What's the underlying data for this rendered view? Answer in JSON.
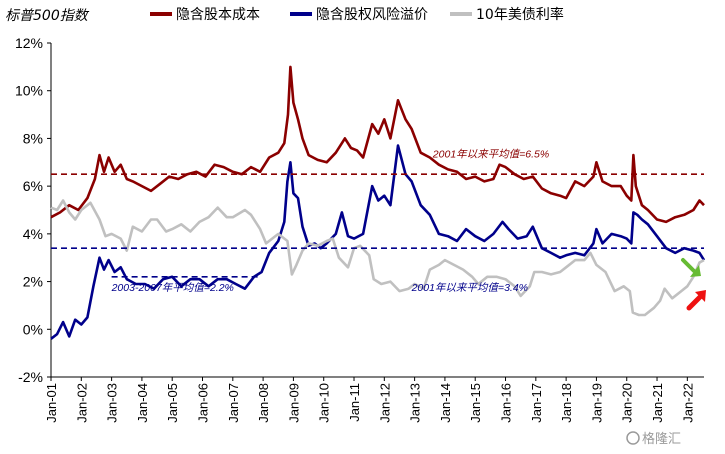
{
  "chart_data": {
    "type": "line",
    "title": "标普500指数",
    "yticks": [
      "-2%",
      "0%",
      "2%",
      "4%",
      "6%",
      "8%",
      "10%",
      "12%"
    ],
    "ylim": [
      -2,
      12
    ],
    "xticks": [
      "Jan-01",
      "Jan-02",
      "Jan-03",
      "Jan-04",
      "Jan-05",
      "Jan-06",
      "Jan-07",
      "Jan-08",
      "Jan-09",
      "Jan-10",
      "Jan-11",
      "Jan-12",
      "Jan-13",
      "Jan-14",
      "Jan-15",
      "Jan-16",
      "Jan-17",
      "Jan-18",
      "Jan-19",
      "Jan-20",
      "Jan-21",
      "Jan-22"
    ],
    "xlim": [
      2001.0,
      2022.55
    ],
    "legend_position": "top",
    "grid": false,
    "series": [
      {
        "name": "隐含股本成本",
        "color": "#8B0000",
        "points": [
          [
            2001.0,
            4.7
          ],
          [
            2001.3,
            4.9
          ],
          [
            2001.6,
            5.2
          ],
          [
            2001.9,
            5.0
          ],
          [
            2002.2,
            5.5
          ],
          [
            2002.45,
            6.3
          ],
          [
            2002.6,
            7.3
          ],
          [
            2002.75,
            6.6
          ],
          [
            2002.9,
            7.2
          ],
          [
            2003.1,
            6.6
          ],
          [
            2003.3,
            6.9
          ],
          [
            2003.5,
            6.3
          ],
          [
            2003.7,
            6.2
          ],
          [
            2004.0,
            6.0
          ],
          [
            2004.3,
            5.8
          ],
          [
            2004.6,
            6.1
          ],
          [
            2004.9,
            6.4
          ],
          [
            2005.2,
            6.3
          ],
          [
            2005.5,
            6.5
          ],
          [
            2005.8,
            6.6
          ],
          [
            2006.1,
            6.4
          ],
          [
            2006.4,
            6.9
          ],
          [
            2006.7,
            6.8
          ],
          [
            2007.0,
            6.6
          ],
          [
            2007.3,
            6.5
          ],
          [
            2007.6,
            6.8
          ],
          [
            2007.9,
            6.6
          ],
          [
            2008.2,
            7.2
          ],
          [
            2008.5,
            7.4
          ],
          [
            2008.7,
            7.8
          ],
          [
            2008.82,
            9.0
          ],
          [
            2008.9,
            11.0
          ],
          [
            2009.0,
            9.5
          ],
          [
            2009.15,
            8.8
          ],
          [
            2009.3,
            8.0
          ],
          [
            2009.5,
            7.3
          ],
          [
            2009.8,
            7.1
          ],
          [
            2010.1,
            7.0
          ],
          [
            2010.4,
            7.4
          ],
          [
            2010.7,
            8.0
          ],
          [
            2010.9,
            7.6
          ],
          [
            2011.1,
            7.5
          ],
          [
            2011.3,
            7.2
          ],
          [
            2011.6,
            8.6
          ],
          [
            2011.8,
            8.2
          ],
          [
            2012.0,
            8.8
          ],
          [
            2012.2,
            8.0
          ],
          [
            2012.45,
            9.6
          ],
          [
            2012.7,
            8.8
          ],
          [
            2012.9,
            8.4
          ],
          [
            2013.2,
            7.4
          ],
          [
            2013.5,
            7.2
          ],
          [
            2013.8,
            6.9
          ],
          [
            2014.1,
            6.7
          ],
          [
            2014.4,
            6.6
          ],
          [
            2014.7,
            6.3
          ],
          [
            2015.0,
            6.4
          ],
          [
            2015.3,
            6.2
          ],
          [
            2015.6,
            6.3
          ],
          [
            2015.8,
            6.9
          ],
          [
            2016.0,
            6.8
          ],
          [
            2016.3,
            6.5
          ],
          [
            2016.6,
            6.3
          ],
          [
            2016.9,
            6.4
          ],
          [
            2017.2,
            5.9
          ],
          [
            2017.5,
            5.7
          ],
          [
            2017.8,
            5.6
          ],
          [
            2018.0,
            5.5
          ],
          [
            2018.3,
            6.2
          ],
          [
            2018.6,
            6.0
          ],
          [
            2018.9,
            6.4
          ],
          [
            2019.0,
            7.0
          ],
          [
            2019.2,
            6.2
          ],
          [
            2019.5,
            6.0
          ],
          [
            2019.8,
            6.0
          ],
          [
            2020.0,
            5.6
          ],
          [
            2020.15,
            5.4
          ],
          [
            2020.22,
            7.3
          ],
          [
            2020.3,
            6.0
          ],
          [
            2020.5,
            5.2
          ],
          [
            2020.7,
            5.0
          ],
          [
            2021.0,
            4.6
          ],
          [
            2021.3,
            4.5
          ],
          [
            2021.6,
            4.7
          ],
          [
            2021.9,
            4.8
          ],
          [
            2022.2,
            5.0
          ],
          [
            2022.4,
            5.4
          ],
          [
            2022.55,
            5.2
          ]
        ]
      },
      {
        "name": "隐含股权风险溢价",
        "color": "#00008B",
        "points": [
          [
            2001.0,
            -0.4
          ],
          [
            2001.2,
            -0.2
          ],
          [
            2001.4,
            0.3
          ],
          [
            2001.6,
            -0.3
          ],
          [
            2001.8,
            0.4
          ],
          [
            2002.0,
            0.2
          ],
          [
            2002.2,
            0.5
          ],
          [
            2002.4,
            1.8
          ],
          [
            2002.6,
            3.0
          ],
          [
            2002.75,
            2.5
          ],
          [
            2002.9,
            2.9
          ],
          [
            2003.1,
            2.4
          ],
          [
            2003.3,
            2.6
          ],
          [
            2003.5,
            2.1
          ],
          [
            2003.8,
            1.9
          ],
          [
            2004.1,
            1.9
          ],
          [
            2004.4,
            1.7
          ],
          [
            2004.7,
            2.1
          ],
          [
            2005.0,
            2.2
          ],
          [
            2005.3,
            1.8
          ],
          [
            2005.6,
            2.1
          ],
          [
            2005.9,
            2.1
          ],
          [
            2006.2,
            1.8
          ],
          [
            2006.5,
            2.1
          ],
          [
            2006.8,
            2.1
          ],
          [
            2007.1,
            1.9
          ],
          [
            2007.4,
            1.7
          ],
          [
            2007.7,
            2.2
          ],
          [
            2007.95,
            2.4
          ],
          [
            2008.2,
            3.2
          ],
          [
            2008.5,
            3.7
          ],
          [
            2008.7,
            4.5
          ],
          [
            2008.8,
            6.2
          ],
          [
            2008.9,
            7.0
          ],
          [
            2009.0,
            5.7
          ],
          [
            2009.15,
            5.5
          ],
          [
            2009.3,
            4.3
          ],
          [
            2009.5,
            3.5
          ],
          [
            2009.7,
            3.6
          ],
          [
            2009.9,
            3.4
          ],
          [
            2010.1,
            3.6
          ],
          [
            2010.4,
            4.0
          ],
          [
            2010.6,
            4.9
          ],
          [
            2010.8,
            3.9
          ],
          [
            2011.0,
            3.8
          ],
          [
            2011.3,
            4.0
          ],
          [
            2011.6,
            6.0
          ],
          [
            2011.8,
            5.4
          ],
          [
            2012.0,
            5.6
          ],
          [
            2012.2,
            5.2
          ],
          [
            2012.45,
            7.7
          ],
          [
            2012.7,
            6.5
          ],
          [
            2012.9,
            6.2
          ],
          [
            2013.2,
            5.2
          ],
          [
            2013.5,
            4.8
          ],
          [
            2013.8,
            4.0
          ],
          [
            2014.1,
            3.9
          ],
          [
            2014.4,
            3.7
          ],
          [
            2014.7,
            4.2
          ],
          [
            2015.0,
            3.9
          ],
          [
            2015.3,
            3.7
          ],
          [
            2015.6,
            4.0
          ],
          [
            2015.9,
            4.5
          ],
          [
            2016.1,
            4.2
          ],
          [
            2016.4,
            3.8
          ],
          [
            2016.7,
            3.9
          ],
          [
            2016.9,
            4.3
          ],
          [
            2017.2,
            3.4
          ],
          [
            2017.5,
            3.2
          ],
          [
            2017.8,
            3.0
          ],
          [
            2018.0,
            3.1
          ],
          [
            2018.3,
            3.2
          ],
          [
            2018.6,
            3.1
          ],
          [
            2018.9,
            3.6
          ],
          [
            2019.0,
            4.2
          ],
          [
            2019.2,
            3.6
          ],
          [
            2019.5,
            4.0
          ],
          [
            2019.8,
            3.9
          ],
          [
            2020.0,
            3.8
          ],
          [
            2020.15,
            3.6
          ],
          [
            2020.22,
            4.9
          ],
          [
            2020.35,
            4.8
          ],
          [
            2020.5,
            4.6
          ],
          [
            2020.7,
            4.4
          ],
          [
            2021.0,
            3.9
          ],
          [
            2021.3,
            3.4
          ],
          [
            2021.6,
            3.2
          ],
          [
            2021.9,
            3.4
          ],
          [
            2022.2,
            3.3
          ],
          [
            2022.4,
            3.2
          ],
          [
            2022.55,
            2.9
          ]
        ]
      },
      {
        "name": "10年美债利率",
        "color": "#C0C0C0",
        "points": [
          [
            2001.0,
            5.1
          ],
          [
            2001.2,
            5.0
          ],
          [
            2001.4,
            5.4
          ],
          [
            2001.6,
            4.9
          ],
          [
            2001.8,
            4.6
          ],
          [
            2002.0,
            5.0
          ],
          [
            2002.3,
            5.3
          ],
          [
            2002.6,
            4.6
          ],
          [
            2002.8,
            3.9
          ],
          [
            2003.0,
            4.0
          ],
          [
            2003.3,
            3.8
          ],
          [
            2003.5,
            3.3
          ],
          [
            2003.7,
            4.3
          ],
          [
            2004.0,
            4.1
          ],
          [
            2004.3,
            4.6
          ],
          [
            2004.5,
            4.6
          ],
          [
            2004.8,
            4.1
          ],
          [
            2005.0,
            4.2
          ],
          [
            2005.3,
            4.4
          ],
          [
            2005.6,
            4.1
          ],
          [
            2005.9,
            4.5
          ],
          [
            2006.2,
            4.7
          ],
          [
            2006.5,
            5.1
          ],
          [
            2006.8,
            4.7
          ],
          [
            2007.0,
            4.7
          ],
          [
            2007.4,
            5.0
          ],
          [
            2007.6,
            4.8
          ],
          [
            2007.9,
            4.2
          ],
          [
            2008.1,
            3.6
          ],
          [
            2008.3,
            3.8
          ],
          [
            2008.5,
            4.0
          ],
          [
            2008.8,
            3.7
          ],
          [
            2008.95,
            2.3
          ],
          [
            2009.1,
            2.7
          ],
          [
            2009.3,
            3.3
          ],
          [
            2009.5,
            3.6
          ],
          [
            2009.8,
            3.5
          ],
          [
            2010.1,
            3.7
          ],
          [
            2010.3,
            3.8
          ],
          [
            2010.5,
            3.0
          ],
          [
            2010.8,
            2.6
          ],
          [
            2011.0,
            3.4
          ],
          [
            2011.2,
            3.5
          ],
          [
            2011.5,
            3.1
          ],
          [
            2011.65,
            2.1
          ],
          [
            2011.9,
            1.9
          ],
          [
            2012.2,
            2.0
          ],
          [
            2012.5,
            1.6
          ],
          [
            2012.8,
            1.7
          ],
          [
            2013.0,
            1.9
          ],
          [
            2013.3,
            1.7
          ],
          [
            2013.5,
            2.5
          ],
          [
            2013.8,
            2.7
          ],
          [
            2014.0,
            2.9
          ],
          [
            2014.3,
            2.7
          ],
          [
            2014.6,
            2.5
          ],
          [
            2014.9,
            2.2
          ],
          [
            2015.1,
            1.9
          ],
          [
            2015.4,
            2.2
          ],
          [
            2015.7,
            2.2
          ],
          [
            2016.0,
            2.1
          ],
          [
            2016.3,
            1.8
          ],
          [
            2016.5,
            1.4
          ],
          [
            2016.8,
            1.8
          ],
          [
            2016.95,
            2.4
          ],
          [
            2017.2,
            2.4
          ],
          [
            2017.5,
            2.3
          ],
          [
            2017.8,
            2.4
          ],
          [
            2018.0,
            2.6
          ],
          [
            2018.3,
            2.9
          ],
          [
            2018.6,
            2.9
          ],
          [
            2018.8,
            3.2
          ],
          [
            2019.0,
            2.7
          ],
          [
            2019.3,
            2.4
          ],
          [
            2019.6,
            1.6
          ],
          [
            2019.9,
            1.8
          ],
          [
            2020.1,
            1.6
          ],
          [
            2020.2,
            0.7
          ],
          [
            2020.4,
            0.6
          ],
          [
            2020.6,
            0.6
          ],
          [
            2020.9,
            0.9
          ],
          [
            2021.1,
            1.2
          ],
          [
            2021.25,
            1.7
          ],
          [
            2021.5,
            1.3
          ],
          [
            2021.8,
            1.6
          ],
          [
            2022.0,
            1.8
          ],
          [
            2022.2,
            2.2
          ],
          [
            2022.4,
            2.8
          ],
          [
            2022.55,
            2.9
          ]
        ]
      }
    ],
    "reference_lines": [
      {
        "value": 6.5,
        "color": "#8B0000",
        "label": "2001年以来平均值=6.5%",
        "label_x": 2013.6,
        "label_y": 7.2
      },
      {
        "value": 3.4,
        "color": "#00008B",
        "label": "2001年以来平均值=3.4%",
        "label_x": 2012.9,
        "label_y": 1.6
      },
      {
        "value": 2.2,
        "color": "#00008B",
        "x_range": [
          2003.0,
          2007.95
        ],
        "label": "2003-2007年平均值=2.2%",
        "label_x": 2003.0,
        "label_y": 1.6
      }
    ],
    "arrows": [
      {
        "color": "#66BB33",
        "direction": "down"
      },
      {
        "color": "#EE1111",
        "direction": "up"
      }
    ]
  },
  "watermark": "格隆汇"
}
